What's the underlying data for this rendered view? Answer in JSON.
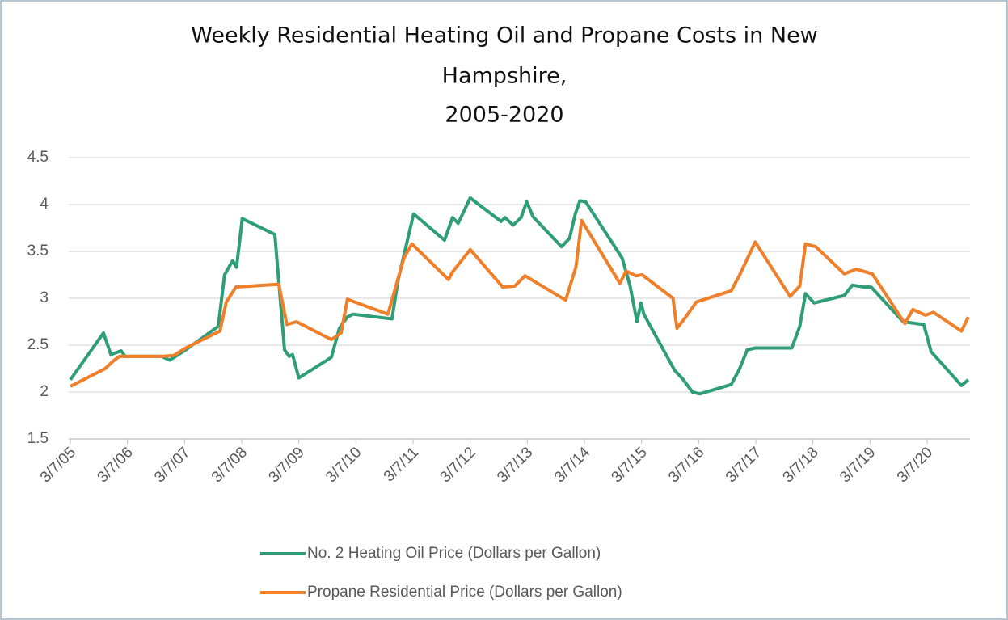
{
  "chart_data": {
    "type": "line",
    "title": [
      "Weekly Residential Heating Oil and Propane Costs in New",
      "Hampshire,",
      "2005-2020"
    ],
    "xlim": [
      2005,
      2020.75
    ],
    "xticks": [
      {
        "value": 2005,
        "label": "3/7/05"
      },
      {
        "value": 2006,
        "label": "3/7/06"
      },
      {
        "value": 2007,
        "label": "3/7/07"
      },
      {
        "value": 2008,
        "label": "3/7/08"
      },
      {
        "value": 2009,
        "label": "3/7/09"
      },
      {
        "value": 2010,
        "label": "3/7/10"
      },
      {
        "value": 2011,
        "label": "3/7/11"
      },
      {
        "value": 2012,
        "label": "3/7/12"
      },
      {
        "value": 2013,
        "label": "3/7/13"
      },
      {
        "value": 2014,
        "label": "3/7/14"
      },
      {
        "value": 2015,
        "label": "3/7/15"
      },
      {
        "value": 2016,
        "label": "3/7/16"
      },
      {
        "value": 2017,
        "label": "3/7/17"
      },
      {
        "value": 2018,
        "label": "3/7/18"
      },
      {
        "value": 2019,
        "label": "3/7/19"
      },
      {
        "value": 2020,
        "label": "3/7/20"
      }
    ],
    "ylim": [
      1.5,
      4.5
    ],
    "yticks": [
      1.5,
      2,
      2.5,
      3,
      3.5,
      4,
      4.5
    ],
    "grid": true,
    "legend": "bottom",
    "series": [
      {
        "name": "No. 2 Heating Oil Price (Dollars per Gallon)",
        "color": "#2f9e78",
        "x": [
          2005,
          2005.58,
          2005.71,
          2005.89,
          2005.96,
          2006.6,
          2006.74,
          2007.02,
          2007.59,
          2007.7,
          2007.84,
          2007.91,
          2008.01,
          2008.58,
          2008.75,
          2008.83,
          2008.89,
          2009.0,
          2009.57,
          2009.71,
          2009.85,
          2009.95,
          2010.63,
          2010.74,
          2011.01,
          2011.55,
          2011.69,
          2011.79,
          2012.0,
          2012.54,
          2012.61,
          2012.75,
          2012.89,
          2012.99,
          2013.1,
          2013.6,
          2013.74,
          2013.84,
          2013.92,
          2014.02,
          2014.66,
          2014.8,
          2014.92,
          2014.99,
          2015.04,
          2015.58,
          2015.72,
          2015.89,
          2016.02,
          2016.57,
          2016.71,
          2016.85,
          2016.99,
          2017.63,
          2017.77,
          2017.87,
          2018.02,
          2018.55,
          2018.69,
          2018.9,
          2019.02,
          2019.58,
          2019.94,
          2020.07,
          2020.6,
          2020.72
        ],
        "values": [
          2.13,
          2.63,
          2.4,
          2.44,
          2.38,
          2.38,
          2.34,
          2.45,
          2.7,
          3.25,
          3.4,
          3.33,
          3.85,
          3.68,
          2.45,
          2.38,
          2.4,
          2.15,
          2.37,
          2.68,
          2.8,
          2.83,
          2.78,
          3.2,
          3.9,
          3.62,
          3.86,
          3.8,
          4.07,
          3.82,
          3.86,
          3.78,
          3.86,
          4.03,
          3.87,
          3.55,
          3.64,
          3.9,
          4.04,
          4.03,
          3.43,
          3.13,
          2.75,
          2.95,
          2.83,
          2.23,
          2.14,
          2.0,
          1.98,
          2.08,
          2.24,
          2.45,
          2.47,
          2.47,
          2.7,
          3.05,
          2.95,
          3.03,
          3.14,
          3.12,
          3.12,
          2.75,
          2.72,
          2.43,
          2.07,
          2.13
        ]
      },
      {
        "name": "Propane Residential Price (Dollars per Gallon)",
        "color": "#f07f2a",
        "x": [
          2005,
          2005.61,
          2005.75,
          2005.86,
          2006.6,
          2006.81,
          2007.02,
          2007.62,
          2007.73,
          2007.9,
          2008.65,
          2008.79,
          2008.96,
          2009.57,
          2009.74,
          2009.85,
          2010.56,
          2010.84,
          2010.98,
          2011.62,
          2011.69,
          2012.0,
          2012.57,
          2012.78,
          2012.96,
          2013.67,
          2013.85,
          2013.95,
          2014.62,
          2014.73,
          2014.9,
          2015.01,
          2015.55,
          2015.62,
          2015.76,
          2015.96,
          2016.57,
          2016.71,
          2016.99,
          2017.6,
          2017.77,
          2017.87,
          2018.05,
          2018.55,
          2018.76,
          2019.04,
          2019.61,
          2019.75,
          2019.97,
          2020.11,
          2020.6,
          2020.72
        ],
        "values": [
          2.06,
          2.25,
          2.33,
          2.38,
          2.38,
          2.39,
          2.47,
          2.65,
          2.96,
          3.12,
          3.15,
          2.72,
          2.75,
          2.56,
          2.63,
          2.99,
          2.83,
          3.43,
          3.58,
          3.2,
          3.28,
          3.52,
          3.12,
          3.13,
          3.24,
          2.98,
          3.33,
          3.83,
          3.16,
          3.29,
          3.24,
          3.25,
          3.0,
          2.68,
          2.79,
          2.96,
          3.08,
          3.24,
          3.6,
          3.02,
          3.13,
          3.58,
          3.55,
          3.26,
          3.31,
          3.26,
          2.73,
          2.88,
          2.82,
          2.85,
          2.65,
          2.8
        ]
      }
    ]
  }
}
